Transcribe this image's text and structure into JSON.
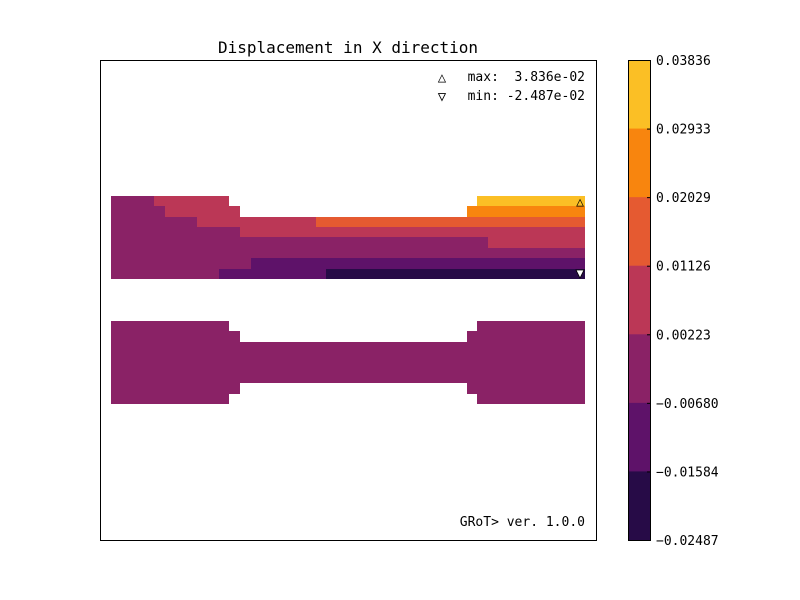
{
  "chart_data": {
    "type": "heatmap",
    "title": "Displacement in X direction",
    "annotations": {
      "max_label": "max:  3.836e-02",
      "min_label": "min: -2.487e-02",
      "max_marker": "△",
      "min_marker": "▽",
      "version": "GRoT> ver. 1.0.0"
    },
    "colorbar": {
      "ticks": [
        "0.03836",
        "0.02933",
        "0.02029",
        "0.01126",
        "0.00223",
        "−0.00680",
        "−0.01584",
        "−0.02487"
      ],
      "colors": [
        "#fbbf25",
        "#f8850e",
        "#e55a31",
        "#bb3756",
        "#8a2266",
        "#5e1269",
        "#270b47"
      ]
    },
    "colors": {
      "level6": "#fbbf25",
      "level5": "#f8850e",
      "level4": "#e55a31",
      "level3": "#bb3756",
      "level2": "#8a2266",
      "level1": "#5e1269",
      "level0": "#270b47",
      "max_label_color": "#ff8c00",
      "min_label_color": "#000080"
    }
  }
}
